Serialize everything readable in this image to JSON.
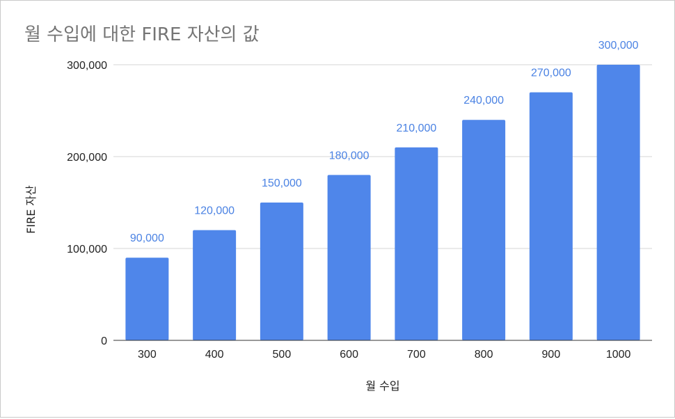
{
  "chart_data": {
    "type": "bar",
    "title": "월 수입에 대한 FIRE 자산의 값",
    "xlabel": "월 수입",
    "ylabel": "FIRE 자산",
    "categories": [
      "300",
      "400",
      "500",
      "600",
      "700",
      "800",
      "900",
      "1000"
    ],
    "values": [
      90000,
      120000,
      150000,
      180000,
      210000,
      240000,
      270000,
      300000
    ],
    "data_labels": [
      "90,000",
      "120,000",
      "150,000",
      "180,000",
      "210,000",
      "240,000",
      "270,000",
      "300,000"
    ],
    "ylim": [
      0,
      300000
    ],
    "yticks": [
      0,
      100000,
      200000,
      300000
    ],
    "ytick_labels": [
      "0",
      "100,000",
      "200,000",
      "300,000"
    ],
    "grid": true,
    "legend": "none",
    "bar_color": "#4f86ea",
    "label_color": "#4a82e3"
  }
}
